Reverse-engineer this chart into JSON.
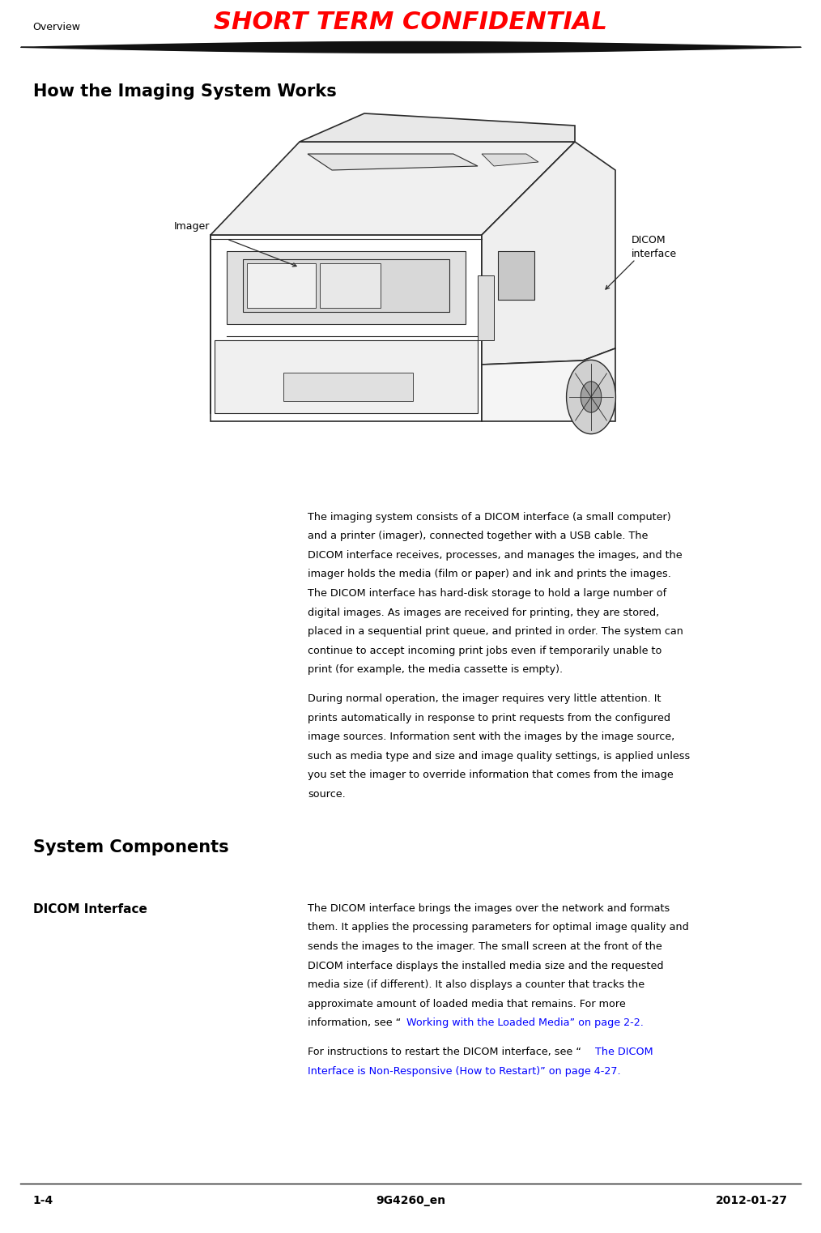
{
  "page_width": 10.14,
  "page_height": 15.22,
  "dpi": 100,
  "bg_color": "#ffffff",
  "header_left": "Overview",
  "header_center": "SHORT TERM CONFIDENTIAL",
  "header_center_color": "#ff0000",
  "header_line_color": "#1a1a1a",
  "footer_left": "1-4",
  "footer_center": "9G4260_en",
  "footer_right": "2012-01-27",
  "footer_line_color": "#1a1a1a",
  "section1_title": "How the Imaging System Works",
  "section2_title": "System Components",
  "dicom_heading": "DICOM Interface",
  "imager_label": "Imager",
  "dicom_label": "DICOM\ninterface",
  "body_text_col": "#000000",
  "link_color": "#0000ff",
  "para1_lines": [
    "The imaging system consists of a DICOM interface (a small computer)",
    "and a printer (imager), connected together with a USB cable. The",
    "DICOM interface receives, processes, and manages the images, and the",
    "imager holds the media (film or paper) and ink and prints the images.",
    "The DICOM interface has hard-disk storage to hold a large number of",
    "digital images. As images are received for printing, they are stored,",
    "placed in a sequential print queue, and printed in order. The system can",
    "continue to accept incoming print jobs even if temporarily unable to",
    "print (for example, the media cassette is empty)."
  ],
  "para2_lines": [
    "During normal operation, the imager requires very little attention. It",
    "prints automatically in response to print requests from the configured",
    "image sources. Information sent with the images by the image source,",
    "such as media type and size and image quality settings, is applied unless",
    "you set the imager to override information that comes from the image",
    "source."
  ],
  "para3_lines": [
    "The DICOM interface brings the images over the network and formats",
    "them. It applies the processing parameters for optimal image quality and",
    "sends the images to the imager. The small screen at the front of the",
    "DICOM interface displays the installed media size and the requested",
    "media size (if different). It also displays a counter that tracks the",
    "approximate amount of loaded media that remains. For more"
  ],
  "para3_link_prefix": "information, see “",
  "para3_link_text": "Working with the Loaded Media” on page 2-2",
  "para3_link_suffix": ".",
  "para4_prefix": "For instructions to restart the DICOM interface, see “",
  "para4_link_line1": "The DICOM",
  "para4_link_line2": "Interface is Non-Responsive (How to Restart)” on page 4-27",
  "para4_suffix": "."
}
